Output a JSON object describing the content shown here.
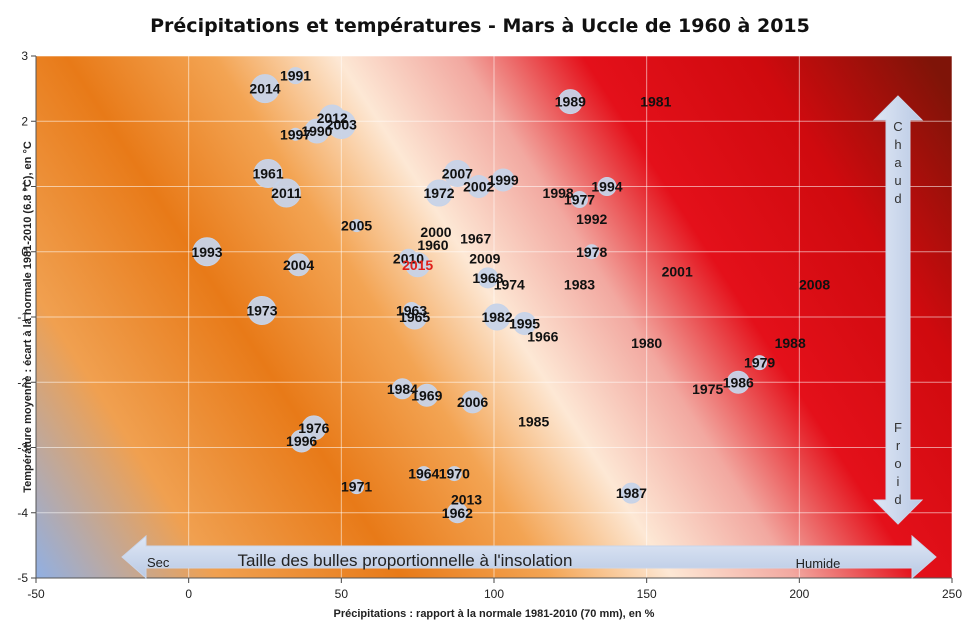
{
  "chart_data": {
    "type": "scatter",
    "title": "Précipitations et températures - Mars à Uccle de 1960 à 2015",
    "xlabel": "Précipitations : rapport à la normale 1981-2010 (70 mm), en %",
    "ylabel": "Température moyenne : écart à la normale 1981-2010 (6.8 °C), en °C",
    "xlim": [
      -50,
      250
    ],
    "ylim": [
      -5,
      3
    ],
    "xticks": [
      "-50",
      "0",
      "50",
      "100",
      "150",
      "200",
      "250"
    ],
    "yticks": [
      "-5",
      "-4",
      "-3",
      "-2",
      "-1",
      "0",
      "1",
      "2",
      "3"
    ],
    "grid": true,
    "bubble_note": "Taille des bulles proportionnelle à l'insolation",
    "horizontal_arrow": {
      "left": "Sec",
      "right": "Humide"
    },
    "vertical_arrow": {
      "top": "Chaud",
      "bottom": "Froid"
    },
    "colors": {
      "bubble": "#c7d3e8",
      "highlight": "#e0201c",
      "hot": "#cc0000",
      "warm": "#f08c2a",
      "cold": "#8fb0e6"
    },
    "points": [
      {
        "label": "1991",
        "x": 35,
        "y": 2.7,
        "size": 8
      },
      {
        "label": "2014",
        "x": 25,
        "y": 2.5,
        "size": 14
      },
      {
        "label": "1989",
        "x": 125,
        "y": 2.3,
        "size": 12
      },
      {
        "label": "1981",
        "x": 153,
        "y": 2.3,
        "size": 0
      },
      {
        "label": "2012",
        "x": 47,
        "y": 2.05,
        "size": 13
      },
      {
        "label": "2003",
        "x": 50,
        "y": 1.95,
        "size": 14
      },
      {
        "label": "1990",
        "x": 42,
        "y": 1.85,
        "size": 12
      },
      {
        "label": "1997",
        "x": 35,
        "y": 1.8,
        "size": 6
      },
      {
        "label": "1961",
        "x": 26,
        "y": 1.2,
        "size": 14
      },
      {
        "label": "2007",
        "x": 88,
        "y": 1.2,
        "size": 13
      },
      {
        "label": "1999",
        "x": 103,
        "y": 1.1,
        "size": 11
      },
      {
        "label": "2002",
        "x": 95,
        "y": 1.0,
        "size": 11
      },
      {
        "label": "1994",
        "x": 137,
        "y": 1.0,
        "size": 9
      },
      {
        "label": "2011",
        "x": 32,
        "y": 0.9,
        "size": 14
      },
      {
        "label": "1972",
        "x": 82,
        "y": 0.9,
        "size": 13
      },
      {
        "label": "1998",
        "x": 121,
        "y": 0.9,
        "size": 0
      },
      {
        "label": "1977",
        "x": 128,
        "y": 0.8,
        "size": 8
      },
      {
        "label": "1992",
        "x": 132,
        "y": 0.5,
        "size": 0
      },
      {
        "label": "2005",
        "x": 55,
        "y": 0.4,
        "size": 6
      },
      {
        "label": "2000",
        "x": 81,
        "y": 0.3,
        "size": 0
      },
      {
        "label": "1967",
        "x": 94,
        "y": 0.2,
        "size": 0
      },
      {
        "label": "1993",
        "x": 6,
        "y": 0.0,
        "size": 14
      },
      {
        "label": "1960",
        "x": 80,
        "y": 0.1,
        "size": 0
      },
      {
        "label": "1978",
        "x": 132,
        "y": 0.0,
        "size": 7
      },
      {
        "label": "2010",
        "x": 72,
        "y": -0.1,
        "size": 9
      },
      {
        "label": "2009",
        "x": 97,
        "y": -0.1,
        "size": 0
      },
      {
        "label": "2015",
        "x": 75,
        "y": -0.2,
        "size": 12,
        "highlight": true
      },
      {
        "label": "2004",
        "x": 36,
        "y": -0.2,
        "size": 11
      },
      {
        "label": "2001",
        "x": 160,
        "y": -0.3,
        "size": 0
      },
      {
        "label": "1968",
        "x": 98,
        "y": -0.4,
        "size": 10
      },
      {
        "label": "1974",
        "x": 105,
        "y": -0.5,
        "size": 0
      },
      {
        "label": "1983",
        "x": 128,
        "y": -0.5,
        "size": 0
      },
      {
        "label": "2008",
        "x": 205,
        "y": -0.5,
        "size": 0
      },
      {
        "label": "1973",
        "x": 24,
        "y": -0.9,
        "size": 14
      },
      {
        "label": "1963",
        "x": 73,
        "y": -0.9,
        "size": 8
      },
      {
        "label": "1965",
        "x": 74,
        "y": -1.0,
        "size": 12
      },
      {
        "label": "1982",
        "x": 101,
        "y": -1.0,
        "size": 13
      },
      {
        "label": "1995",
        "x": 110,
        "y": -1.1,
        "size": 11
      },
      {
        "label": "1966",
        "x": 116,
        "y": -1.3,
        "size": 0
      },
      {
        "label": "1980",
        "x": 150,
        "y": -1.4,
        "size": 0
      },
      {
        "label": "1988",
        "x": 197,
        "y": -1.4,
        "size": 0
      },
      {
        "label": "1979",
        "x": 187,
        "y": -1.7,
        "size": 7
      },
      {
        "label": "1986",
        "x": 180,
        "y": -2.0,
        "size": 11
      },
      {
        "label": "1975",
        "x": 170,
        "y": -2.1,
        "size": 0
      },
      {
        "label": "1984",
        "x": 70,
        "y": -2.1,
        "size": 10
      },
      {
        "label": "1969",
        "x": 78,
        "y": -2.2,
        "size": 11
      },
      {
        "label": "2006",
        "x": 93,
        "y": -2.3,
        "size": 11
      },
      {
        "label": "1985",
        "x": 113,
        "y": -2.6,
        "size": 0
      },
      {
        "label": "1976",
        "x": 41,
        "y": -2.7,
        "size": 12
      },
      {
        "label": "1996",
        "x": 37,
        "y": -2.9,
        "size": 11
      },
      {
        "label": "1964",
        "x": 77,
        "y": -3.4,
        "size": 7
      },
      {
        "label": "1970",
        "x": 87,
        "y": -3.4,
        "size": 7
      },
      {
        "label": "1971",
        "x": 55,
        "y": -3.6,
        "size": 7
      },
      {
        "label": "1987",
        "x": 145,
        "y": -3.7,
        "size": 10
      },
      {
        "label": "2013",
        "x": 91,
        "y": -3.8,
        "size": 0
      },
      {
        "label": "1962",
        "x": 88,
        "y": -4.0,
        "size": 10
      }
    ]
  }
}
